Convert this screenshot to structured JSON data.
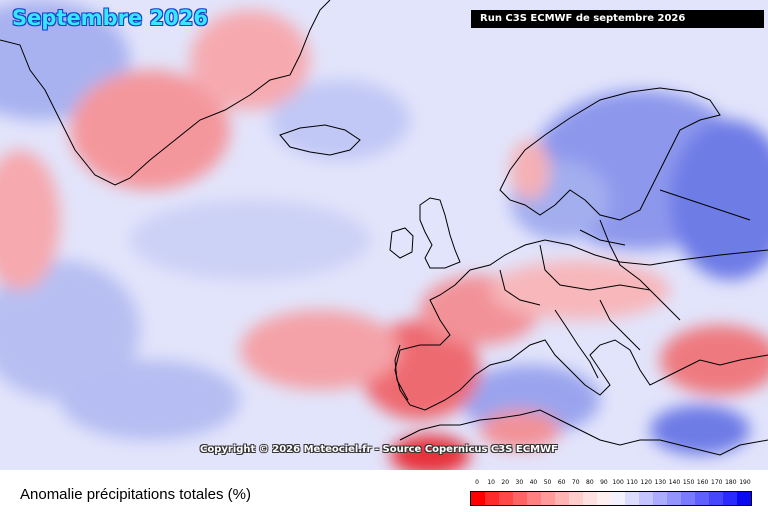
{
  "header": {
    "title": "Septembre 2026",
    "run_label": "Run C3S ECMWF de septembre 2026"
  },
  "map": {
    "copyright": "Copyright © 2026 Meteociel.fr - Source Copernicus C3S ECMWF",
    "colors": {
      "ocean_base": "#e2e4fb",
      "strong_dry": "#e8333a",
      "dry": "#f4878c",
      "slight_dry": "#f9c3c6",
      "slight_wet": "#c7ccf4",
      "wet": "#8d98ec",
      "strong_wet": "#3a45d8",
      "coastline": "#000000"
    }
  },
  "footer": {
    "caption": "Anomalie précipitations totales (%)"
  },
  "legend": {
    "ticks": [
      "0",
      "10",
      "20",
      "30",
      "40",
      "50",
      "60",
      "70",
      "80",
      "90",
      "100",
      "110",
      "120",
      "130",
      "140",
      "150",
      "160",
      "170",
      "180",
      "190"
    ],
    "colors": [
      "#ff0000",
      "#ff2a2a",
      "#ff4848",
      "#ff6464",
      "#ff8080",
      "#ff9a9a",
      "#ffb3b3",
      "#ffcccc",
      "#ffe0e0",
      "#fff0f0",
      "#f2f2ff",
      "#dcdcff",
      "#c4c4ff",
      "#acacff",
      "#9494ff",
      "#7a7aff",
      "#6060ff",
      "#4646ff",
      "#2a2aff",
      "#0a0af0"
    ]
  }
}
